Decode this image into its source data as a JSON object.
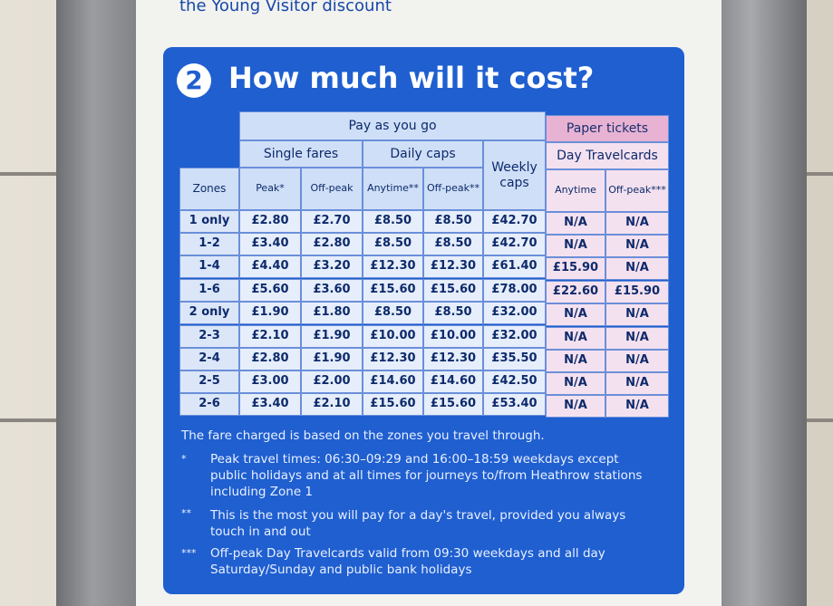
{
  "top_text": "the Young Visitor discount",
  "section_number": "2",
  "title": "How much will it cost?",
  "table": {
    "group_payg": "Pay as you go",
    "group_paper": "Paper tickets",
    "sub_single": "Single fares",
    "sub_daily": "Daily caps",
    "sub_weekly": "Weekly caps",
    "sub_travelcards": "Day Travelcards",
    "col_zones": "Zones",
    "col_peak": "Peak*",
    "col_offpeak": "Off-peak",
    "col_anytime": "Anytime**",
    "col_offpeak_daily": "Off-peak**",
    "col_tc_anytime": "Anytime",
    "col_tc_offpeak": "Off-peak***",
    "rows": [
      [
        "1 only",
        "£2.80",
        "£2.70",
        "£8.50",
        "£8.50",
        "£42.70",
        "N/A",
        "N/A"
      ],
      [
        "1-2",
        "£3.40",
        "£2.80",
        "£8.50",
        "£8.50",
        "£42.70",
        "N/A",
        "N/A"
      ],
      [
        "1-4",
        "£4.40",
        "£3.20",
        "£12.30",
        "£12.30",
        "£61.40",
        "£15.90",
        "N/A"
      ],
      [
        "1-6",
        "£5.60",
        "£3.60",
        "£15.60",
        "£15.60",
        "£78.00",
        "£22.60",
        "£15.90"
      ],
      [
        "2 only",
        "£1.90",
        "£1.80",
        "£8.50",
        "£8.50",
        "£32.00",
        "N/A",
        "N/A"
      ],
      [
        "2-3",
        "£2.10",
        "£1.90",
        "£10.00",
        "£10.00",
        "£32.00",
        "N/A",
        "N/A"
      ],
      [
        "2-4",
        "£2.80",
        "£1.90",
        "£12.30",
        "£12.30",
        "£35.50",
        "N/A",
        "N/A"
      ],
      [
        "2-5",
        "£3.00",
        "£2.00",
        "£14.60",
        "£14.60",
        "£42.50",
        "N/A",
        "N/A"
      ],
      [
        "2-6",
        "£3.40",
        "£2.10",
        "£15.60",
        "£15.60",
        "£53.40",
        "N/A",
        "N/A"
      ]
    ]
  },
  "notes": {
    "intro": "The fare charged is based on the zones you travel through.",
    "n1_mark": "*",
    "n1": "Peak travel times: 06:30–09:29 and 16:00–18:59 weekdays except public holidays and at all times for journeys to/from Heathrow stations including Zone 1",
    "n2_mark": "**",
    "n2": "This is the most you will pay for a day's travel, provided you always touch in and out",
    "n3_mark": "***",
    "n3": "Off-peak Day Travelcards valid from 09:30 weekdays and all day Saturday/Sunday and public bank holidays"
  }
}
